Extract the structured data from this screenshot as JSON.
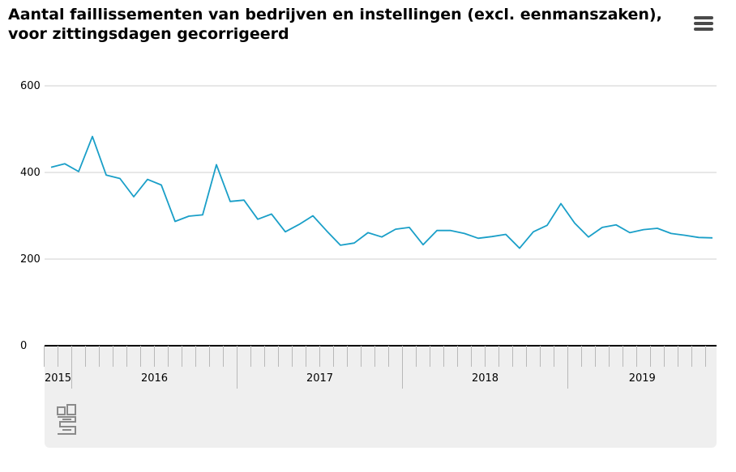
{
  "title": "Aantal faillissementen van bedrijven en instellingen (excl. eenmanszaken), voor zittingsdagen gecorrigeerd",
  "menu": {
    "icon": "hamburger-menu-icon"
  },
  "logo": {
    "icon": "cbs-logo-icon"
  },
  "colors": {
    "line": "#1a9fc8",
    "grid": "#cfcfcf",
    "axis": "#000000",
    "panel": "#efefef"
  },
  "chart_data": {
    "type": "line",
    "title": "Aantal faillissementen van bedrijven en instellingen (excl. eenmanszaken), voor zittingsdagen gecorrigeerd",
    "xlabel": "",
    "ylabel": "",
    "ylim": [
      0,
      600
    ],
    "yticks": [
      "0",
      "200",
      "400",
      "600"
    ],
    "grid": true,
    "legend": "none",
    "x_start": "2015-11",
    "x_end": "2019-12",
    "year_labels": [
      {
        "label": "2015",
        "start": "2015-11",
        "end": "2015-12"
      },
      {
        "label": "2016",
        "start": "2016-01",
        "end": "2016-12"
      },
      {
        "label": "2017",
        "start": "2017-01",
        "end": "2017-12"
      },
      {
        "label": "2018",
        "start": "2018-01",
        "end": "2018-12"
      },
      {
        "label": "2019",
        "start": "2019-01",
        "end": "2019-12"
      }
    ],
    "x": [
      "2015-11",
      "2015-12",
      "2016-01",
      "2016-02",
      "2016-03",
      "2016-04",
      "2016-05",
      "2016-06",
      "2016-07",
      "2016-08",
      "2016-09",
      "2016-10",
      "2016-11",
      "2016-12",
      "2017-01",
      "2017-02",
      "2017-03",
      "2017-04",
      "2017-05",
      "2017-06",
      "2017-07",
      "2017-08",
      "2017-09",
      "2017-10",
      "2017-11",
      "2017-12",
      "2018-01",
      "2018-02",
      "2018-03",
      "2018-04",
      "2018-05",
      "2018-06",
      "2018-07",
      "2018-08",
      "2018-09",
      "2018-10",
      "2018-11",
      "2018-12",
      "2019-01",
      "2019-02",
      "2019-03",
      "2019-04",
      "2019-05",
      "2019-06",
      "2019-07",
      "2019-08",
      "2019-09",
      "2019-10",
      "2019-11"
    ],
    "series": [
      {
        "values": [
          412,
          420,
          402,
          483,
          394,
          386,
          344,
          384,
          371,
          287,
          299,
          302,
          418,
          333,
          336,
          292,
          304,
          263,
          280,
          300,
          265,
          232,
          237,
          261,
          251,
          269,
          273,
          233,
          266,
          266,
          259,
          248,
          252,
          257,
          225,
          263,
          278,
          328,
          283,
          251,
          273,
          279,
          261,
          268,
          271,
          259,
          255,
          250,
          249
        ]
      }
    ]
  }
}
